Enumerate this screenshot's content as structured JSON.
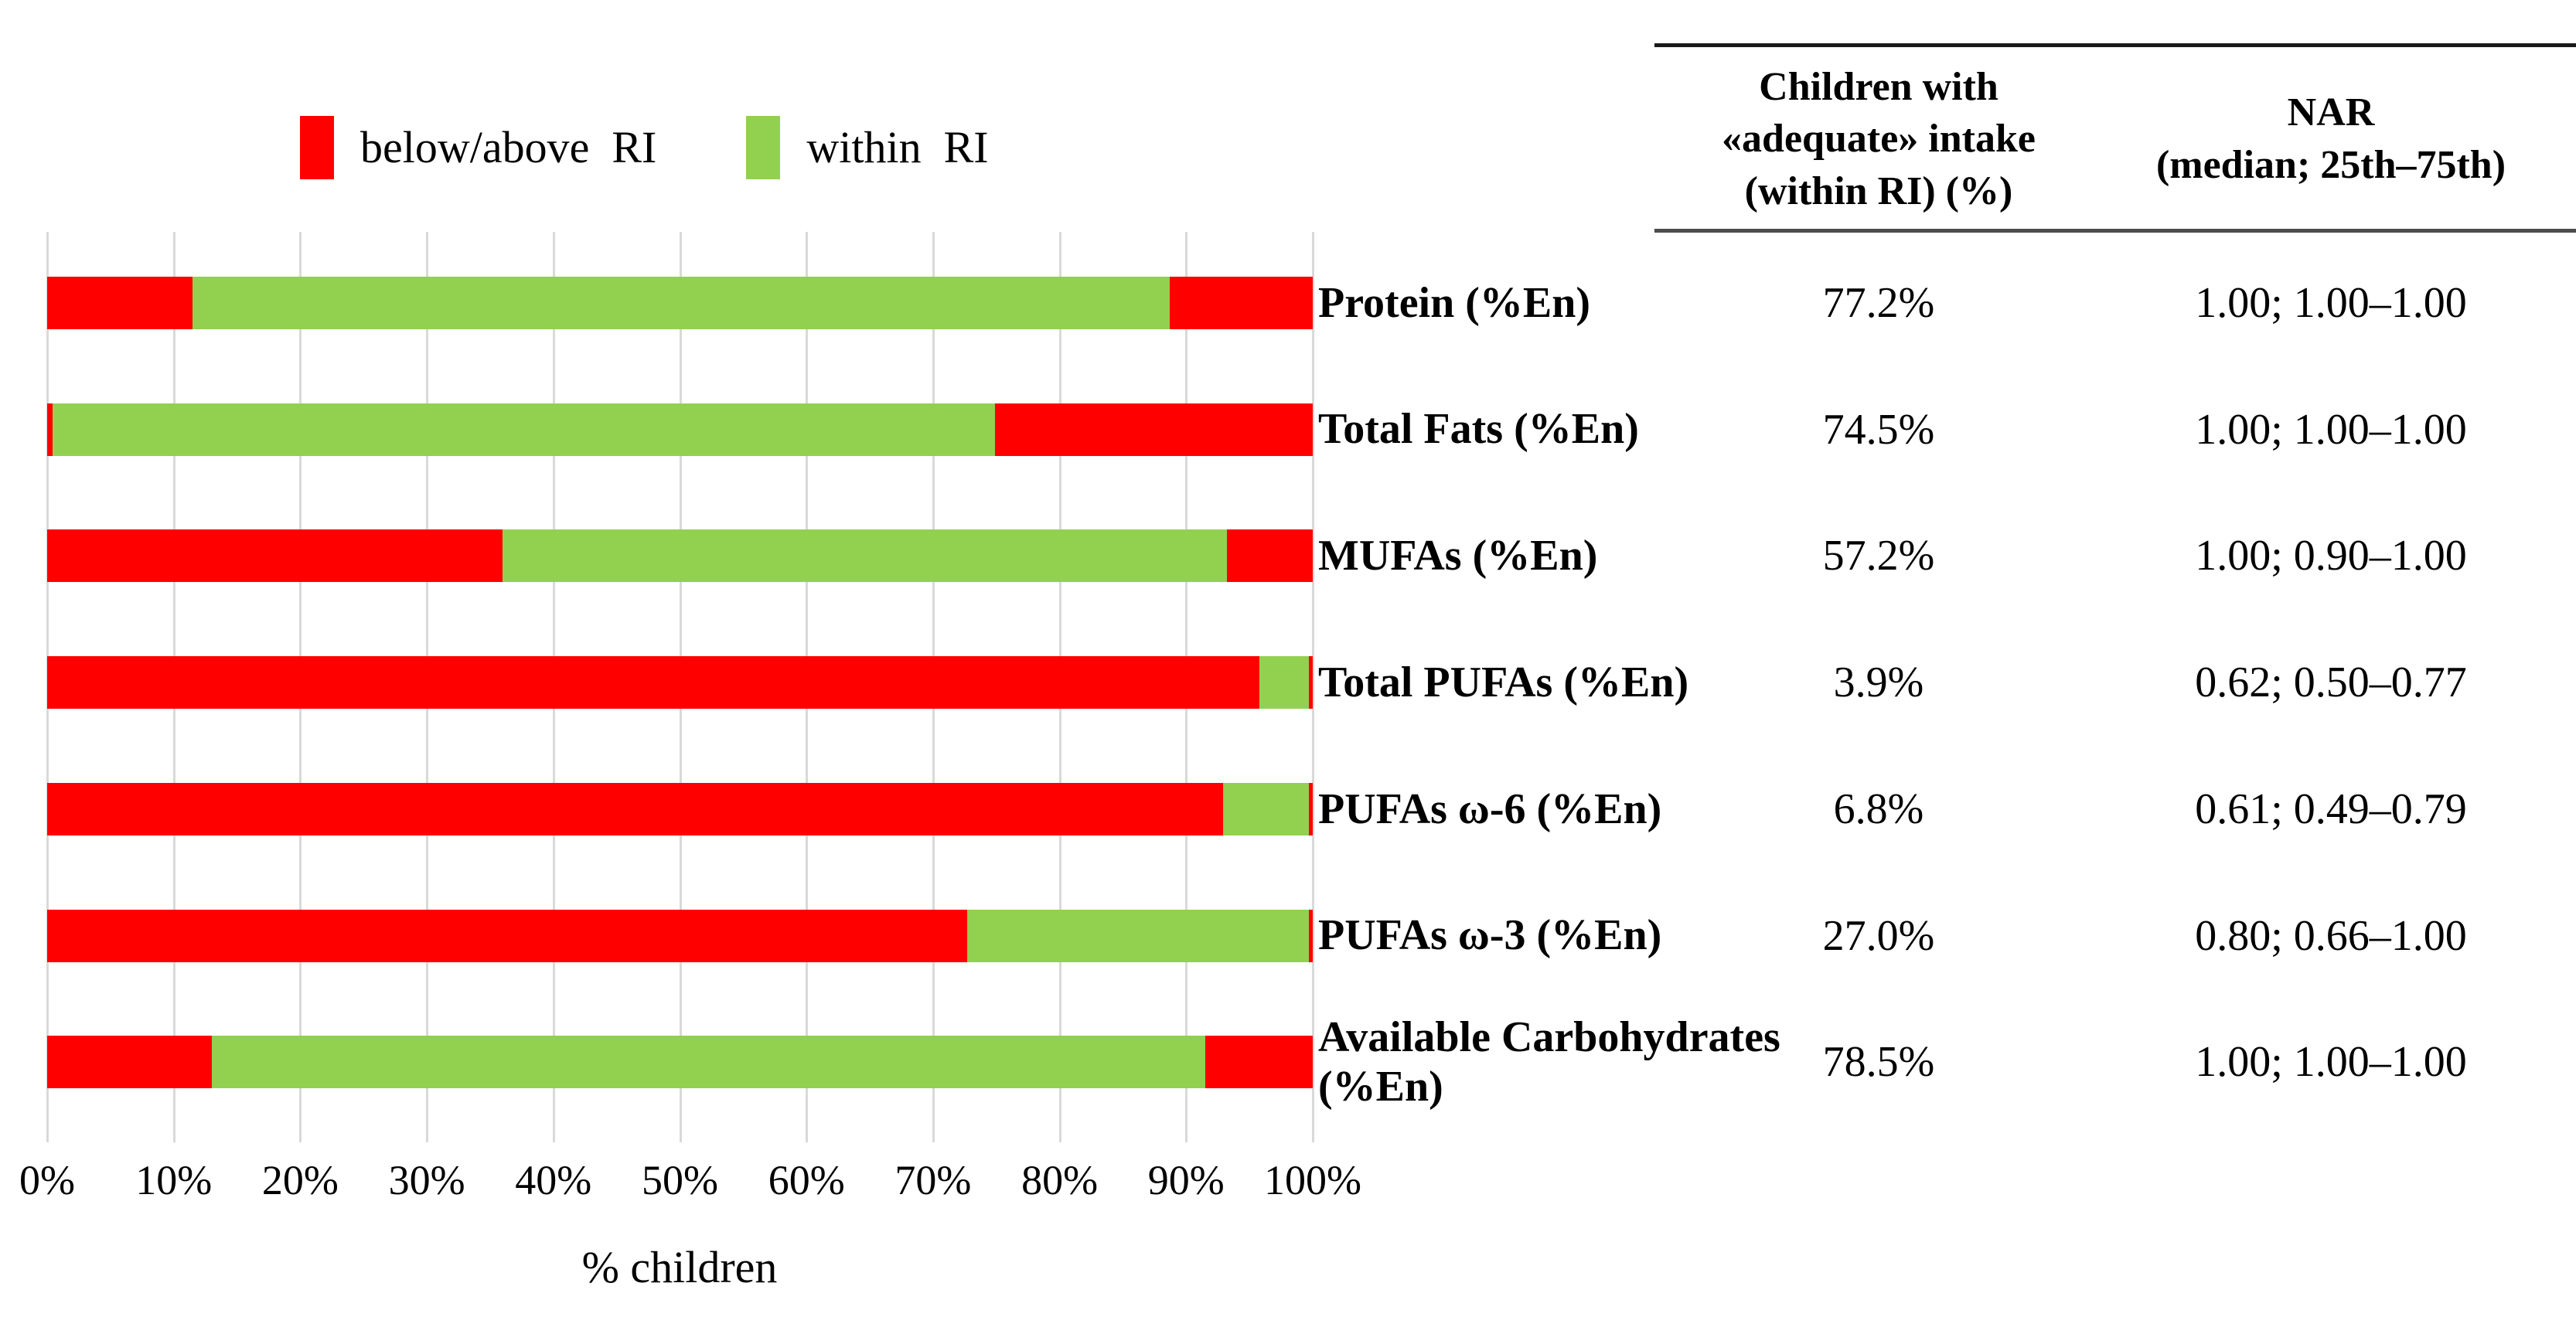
{
  "legend": {
    "below_above_label": "below/above  RI",
    "within_label": "within  RI"
  },
  "colors": {
    "below_above": "#FF0000",
    "within": "#92D050",
    "gridline": "#D9D9D9"
  },
  "chart_data": {
    "type": "bar",
    "orientation": "horizontal",
    "stacked": true,
    "title": "",
    "xlabel": "% children",
    "ylabel": "",
    "xlim": [
      0,
      100
    ],
    "x_ticks": [
      "0%",
      "10%",
      "20%",
      "30%",
      "40%",
      "50%",
      "60%",
      "70%",
      "80%",
      "90%",
      "100%"
    ],
    "grid": "vertical",
    "legend_position": "top-left",
    "categories": [
      "Protein (%En)",
      "Total Fats (%En)",
      "MUFAs (%En)",
      "Total PUFAs (%En)",
      "PUFAs ω-6 (%En)",
      "PUFAs ω-3 (%En)",
      "Available Carbohydrates (%En)"
    ],
    "series": [
      {
        "name": "below RI (left red segment)",
        "key": "below",
        "color": "#FF0000",
        "values": [
          11.5,
          0.4,
          36.0,
          95.8,
          92.9,
          72.7,
          13.0
        ]
      },
      {
        "name": "within RI",
        "key": "within",
        "color": "#92D050",
        "values": [
          77.2,
          74.5,
          57.2,
          3.9,
          6.8,
          27.0,
          78.5
        ]
      },
      {
        "name": "above RI (right red segment)",
        "key": "above",
        "color": "#FF0000",
        "values": [
          11.3,
          25.1,
          6.8,
          0.3,
          0.3,
          0.3,
          8.5
        ]
      }
    ]
  },
  "table": {
    "columns": [
      "Children with\n«adequate» intake\n(within RI) (%)",
      "NAR\n(median; 25th–75th)"
    ],
    "rows": [
      {
        "label": "Protein (%En)",
        "adequate": "77.2%",
        "nar": "1.00; 1.00–1.00"
      },
      {
        "label": "Total Fats (%En)",
        "adequate": "74.5%",
        "nar": "1.00; 1.00–1.00"
      },
      {
        "label": "MUFAs (%En)",
        "adequate": "57.2%",
        "nar": "1.00; 0.90–1.00"
      },
      {
        "label": "Total PUFAs (%En)",
        "adequate": "3.9%",
        "nar": "0.62; 0.50–0.77"
      },
      {
        "label": "PUFAs ω-6 (%En)",
        "adequate": "6.8%",
        "nar": "0.61; 0.49–0.79"
      },
      {
        "label": "PUFAs ω-3 (%En)",
        "adequate": "27.0%",
        "nar": "0.80; 0.66–1.00"
      },
      {
        "label": "Available Carbohydrates (%En)",
        "adequate": "78.5%",
        "nar": "1.00; 1.00–1.00"
      }
    ]
  }
}
